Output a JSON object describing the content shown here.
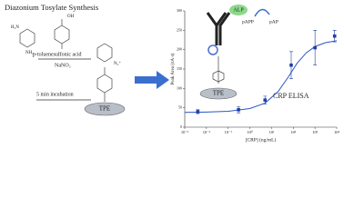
{
  "scheme": {
    "title": "Diazonium Tosylate Synthesis",
    "reagent": "p-toluenesulfonic acid",
    "nitrite": "NaNO₂",
    "step": "5 min incubation",
    "amine": "H₂N",
    "amine2": "NH₂",
    "hydroxyl": "OH",
    "diazonium": "N₂⁺",
    "electrode": "TPE"
  },
  "assay": {
    "enzyme": "ALP",
    "substrate": "pAPP",
    "product": "pAP",
    "electrode": "TPE"
  },
  "chart_data": {
    "type": "scatter",
    "title": "CRP ELISA",
    "x_label": "[CRP] (ng/mL)",
    "y_label": "Peak Area (nA·s)",
    "xlog": true,
    "xlim": [
      0.001,
      10000
    ],
    "ylim": [
      0,
      300
    ],
    "xticks": [
      {
        "value": 0.001,
        "label": "10⁻³"
      },
      {
        "value": 0.01,
        "label": "10⁻²"
      },
      {
        "value": 0.1,
        "label": "10⁻¹"
      },
      {
        "value": 1,
        "label": "10⁰"
      },
      {
        "value": 10,
        "label": "10¹"
      },
      {
        "value": 100,
        "label": "10²"
      },
      {
        "value": 1000,
        "label": "10³"
      },
      {
        "value": 10000,
        "label": "10⁴"
      }
    ],
    "yticks": [
      0,
      50,
      100,
      150,
      200,
      250,
      300
    ],
    "series": [
      {
        "color": "#1f3fa8",
        "x": [
          0.004,
          0.3,
          5,
          80,
          1000,
          8000
        ],
        "values": [
          40,
          45,
          70,
          160,
          205,
          235
        ],
        "errors": [
          5,
          8,
          10,
          35,
          45,
          15
        ]
      }
    ],
    "fit": {
      "color": "#2b55c4",
      "x": [
        0.001,
        0.01,
        0.1,
        1,
        5,
        20,
        60,
        150,
        400,
        1000,
        3000,
        10000
      ],
      "values": [
        38,
        39,
        41,
        48,
        62,
        92,
        130,
        165,
        192,
        208,
        218,
        223
      ]
    }
  }
}
